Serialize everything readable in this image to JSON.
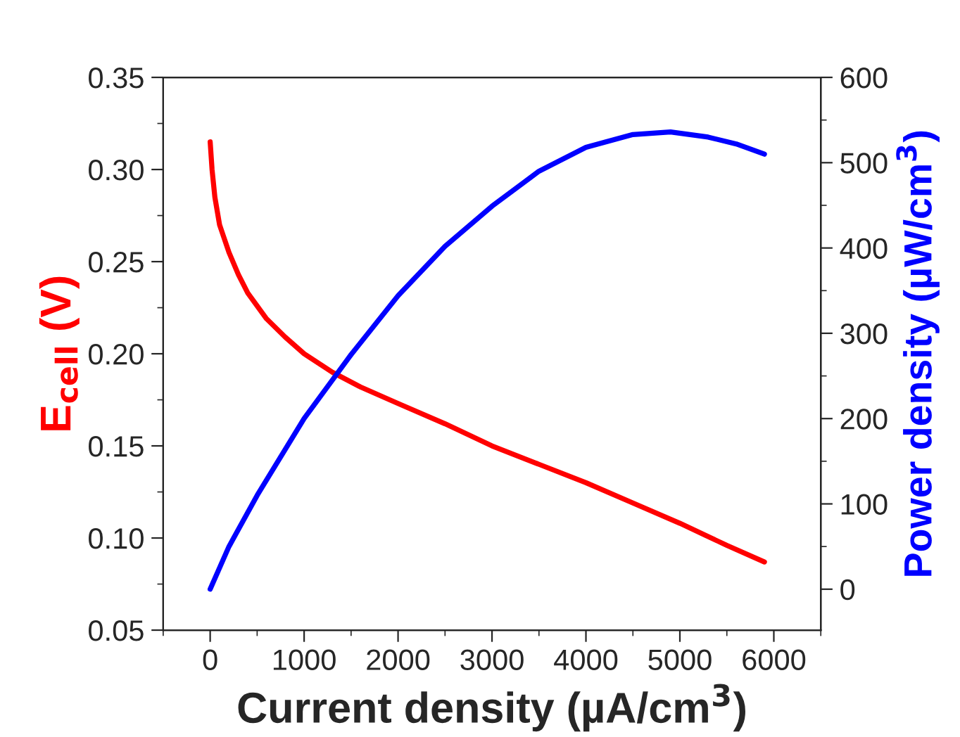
{
  "chart_data": {
    "type": "line",
    "xlabel": "Current density (µA/cm$^{3}$)",
    "ylabel": "E$_{cell}$ (V)",
    "y2label": "Power density (µW/cm$^{3}$)",
    "xlim": [
      -500,
      6500
    ],
    "xticks": [
      0,
      1000,
      2000,
      3000,
      4000,
      5000,
      6000
    ],
    "ylim": [
      0.05,
      0.35
    ],
    "yticks": [
      0.05,
      {
        "value": 0.1,
        "label": "0.10"
      },
      0.15,
      {
        "value": 0.2,
        "label": "0.20"
      },
      0.25,
      {
        "value": 0.3,
        "label": "0.30"
      },
      0.35
    ],
    "y2lim": [
      -48,
      600
    ],
    "y2ticks": [
      0,
      100,
      200,
      300,
      400,
      500,
      600
    ],
    "grid": false,
    "marker": "none",
    "line_style": "solid",
    "series": [
      {
        "color": "#ff0000",
        "x": [
          0,
          20,
          50,
          100,
          200,
          300,
          400,
          600,
          800,
          1000,
          1300,
          1600,
          2000,
          2500,
          3000,
          3500,
          4000,
          4500,
          5000,
          5500,
          5900
        ],
        "values": [
          0.315,
          0.3,
          0.285,
          0.27,
          0.255,
          0.243,
          0.233,
          0.219,
          0.209,
          0.2,
          0.19,
          0.182,
          0.173,
          0.162,
          0.15,
          0.14,
          0.13,
          0.119,
          0.108,
          0.096,
          0.087
        ]
      },
      {
        "color": "#0000ff",
        "axis": "y2",
        "x": [
          0,
          200,
          500,
          1000,
          1500,
          2000,
          2500,
          3000,
          3500,
          4000,
          4500,
          4900,
          5300,
          5600,
          5900
        ],
        "values": [
          0,
          50,
          110,
          200,
          275,
          344,
          402,
          449,
          490,
          518,
          533,
          536,
          530,
          522,
          510
        ]
      }
    ]
  }
}
